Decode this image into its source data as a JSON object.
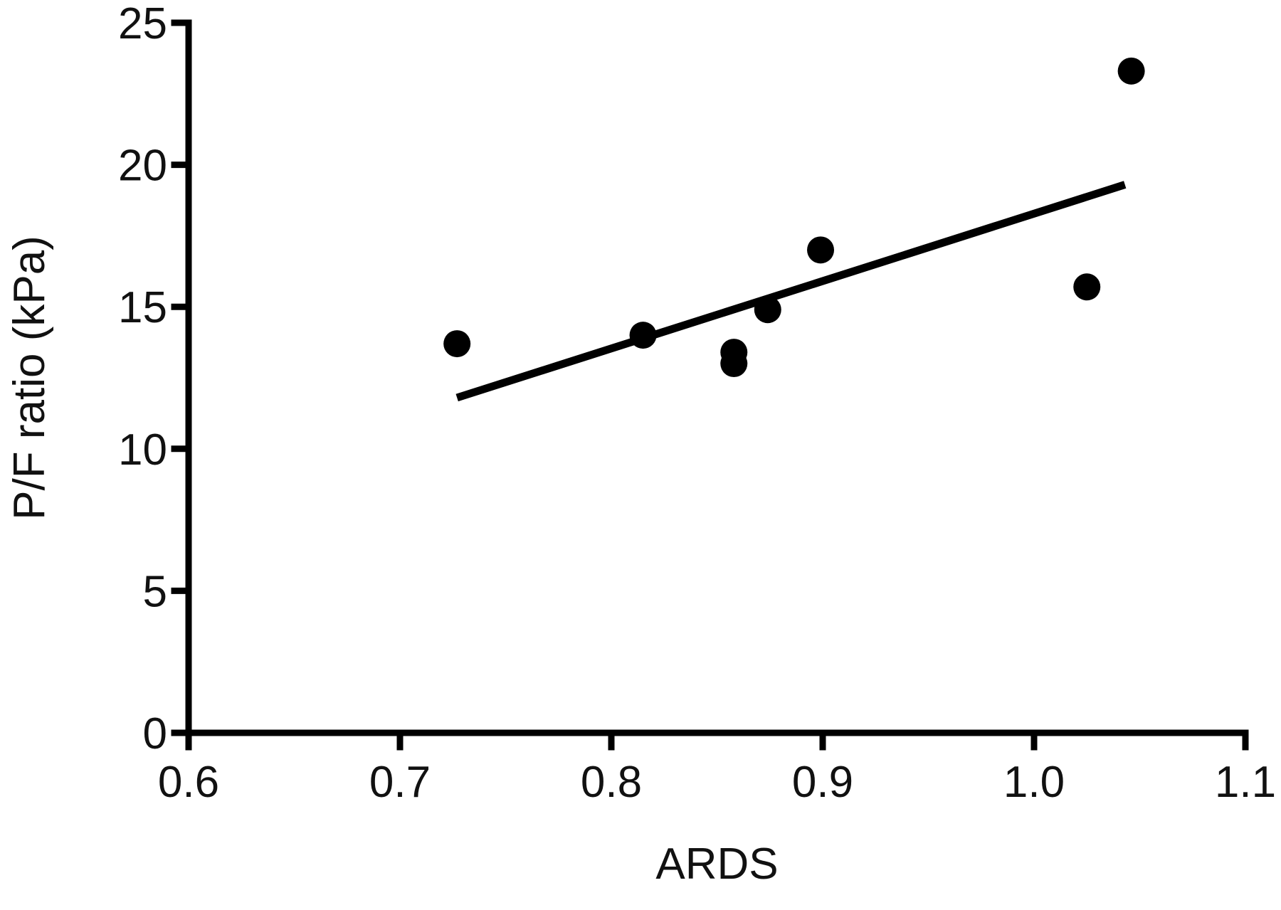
{
  "chart_data": {
    "type": "scatter",
    "title": "",
    "xlabel": "ARDS",
    "ylabel": "P/F ratio (kPa)",
    "xlim": [
      0.6,
      1.1
    ],
    "ylim": [
      0,
      25
    ],
    "x_ticks": [
      0.6,
      0.7,
      0.8,
      0.9,
      1.0,
      1.1
    ],
    "x_tick_labels": [
      "0.6",
      "0.7",
      "0.8",
      "0.9",
      "1.0",
      "1.1"
    ],
    "y_ticks": [
      0,
      5,
      10,
      15,
      20,
      25
    ],
    "y_tick_labels": [
      "0",
      "5",
      "10",
      "15",
      "20",
      "25"
    ],
    "grid": false,
    "legend": "none",
    "series": [
      {
        "x": [
          0.727,
          0.815,
          0.858,
          0.858,
          0.874,
          0.899,
          1.025,
          1.046
        ],
        "y": [
          13.7,
          14.0,
          13.4,
          13.0,
          14.9,
          17.0,
          15.7,
          23.3
        ]
      }
    ],
    "trendline": {
      "x": [
        0.727,
        1.043
      ],
      "y": [
        11.8,
        19.3
      ]
    },
    "colors": {
      "points": "#000000",
      "line": "#000000",
      "axes": "#000000"
    }
  }
}
